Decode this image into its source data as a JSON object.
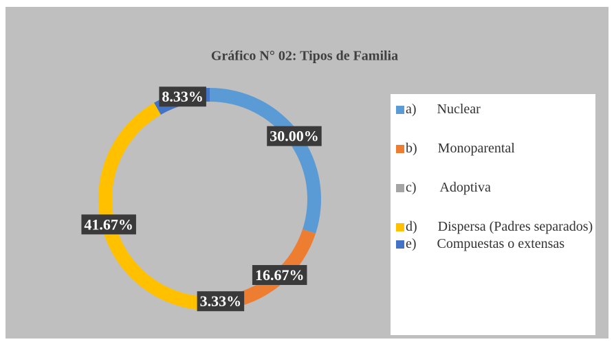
{
  "chart_data": {
    "type": "donut",
    "title": "Gráfico  N° 02: Tipos de Familia",
    "categories": [
      "a)      Nuclear",
      "b)      Monoparental",
      "c)       Adoptiva",
      "d)      Dispersa (Padres separados)",
      "e)      Compuestas o extensas"
    ],
    "values": [
      30.0,
      16.67,
      3.33,
      41.67,
      8.33
    ],
    "value_labels": [
      "30.00%",
      "16.67%",
      "3.33%",
      "41.67%",
      "8.33%"
    ],
    "colors": [
      "#5b9bd5",
      "#ed7d31",
      "#a5a5a5",
      "#ffc000",
      "#4472c4"
    ],
    "legend": "right"
  }
}
